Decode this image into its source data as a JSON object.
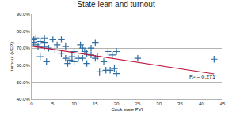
{
  "chart_data": {
    "type": "scatter",
    "title": "State lean and turnout",
    "x_label": "Cook state PVI",
    "y_label": "turnout (VEP)",
    "xlim": [
      0,
      45
    ],
    "xticks": [
      0,
      5,
      10,
      15,
      20,
      25,
      30,
      35,
      40,
      45
    ],
    "ylim": [
      40,
      90
    ],
    "yticks": [
      {
        "value": 40,
        "label": "40.0%"
      },
      {
        "value": 50,
        "label": "50.0%"
      },
      {
        "value": 60,
        "label": "60.0%"
      },
      {
        "value": 70,
        "label": "70.0%"
      },
      {
        "value": 80,
        "label": "80.0%"
      },
      {
        "value": 90,
        "label": "90.0%"
      }
    ],
    "grid": true,
    "series": [
      {
        "type": "scatter",
        "marker": "plus",
        "color": "#2e6da4",
        "x": [
          0.5,
          0.5,
          1,
          1,
          1.5,
          2,
          2,
          3,
          3,
          3,
          3.5,
          4,
          5,
          5.5,
          6,
          7,
          7,
          8,
          8,
          8.5,
          9,
          9.5,
          10,
          10,
          11,
          11.5,
          12,
          12,
          12.5,
          13,
          13,
          14,
          14,
          15,
          15,
          15.5,
          16,
          17,
          17.5,
          18,
          18.5,
          19,
          19.5,
          20,
          20,
          25,
          43
        ],
        "values": [
          75,
          73,
          76,
          72,
          71,
          74,
          65,
          76,
          73,
          71,
          62,
          70,
          75,
          69,
          72,
          75,
          67,
          71,
          64,
          61,
          63,
          65,
          68,
          62,
          64,
          72,
          70,
          64,
          68,
          67,
          61,
          70,
          66,
          64,
          73,
          65,
          56,
          62,
          57,
          68,
          57,
          66,
          58,
          55,
          68,
          64,
          63.5
        ]
      },
      {
        "type": "line",
        "line_style": "solid",
        "color": "#c0143c",
        "x": [
          0,
          43
        ],
        "values": [
          71.2,
          54.8
        ]
      }
    ],
    "annotations": [
      {
        "text": "R² = 0.271"
      }
    ]
  }
}
